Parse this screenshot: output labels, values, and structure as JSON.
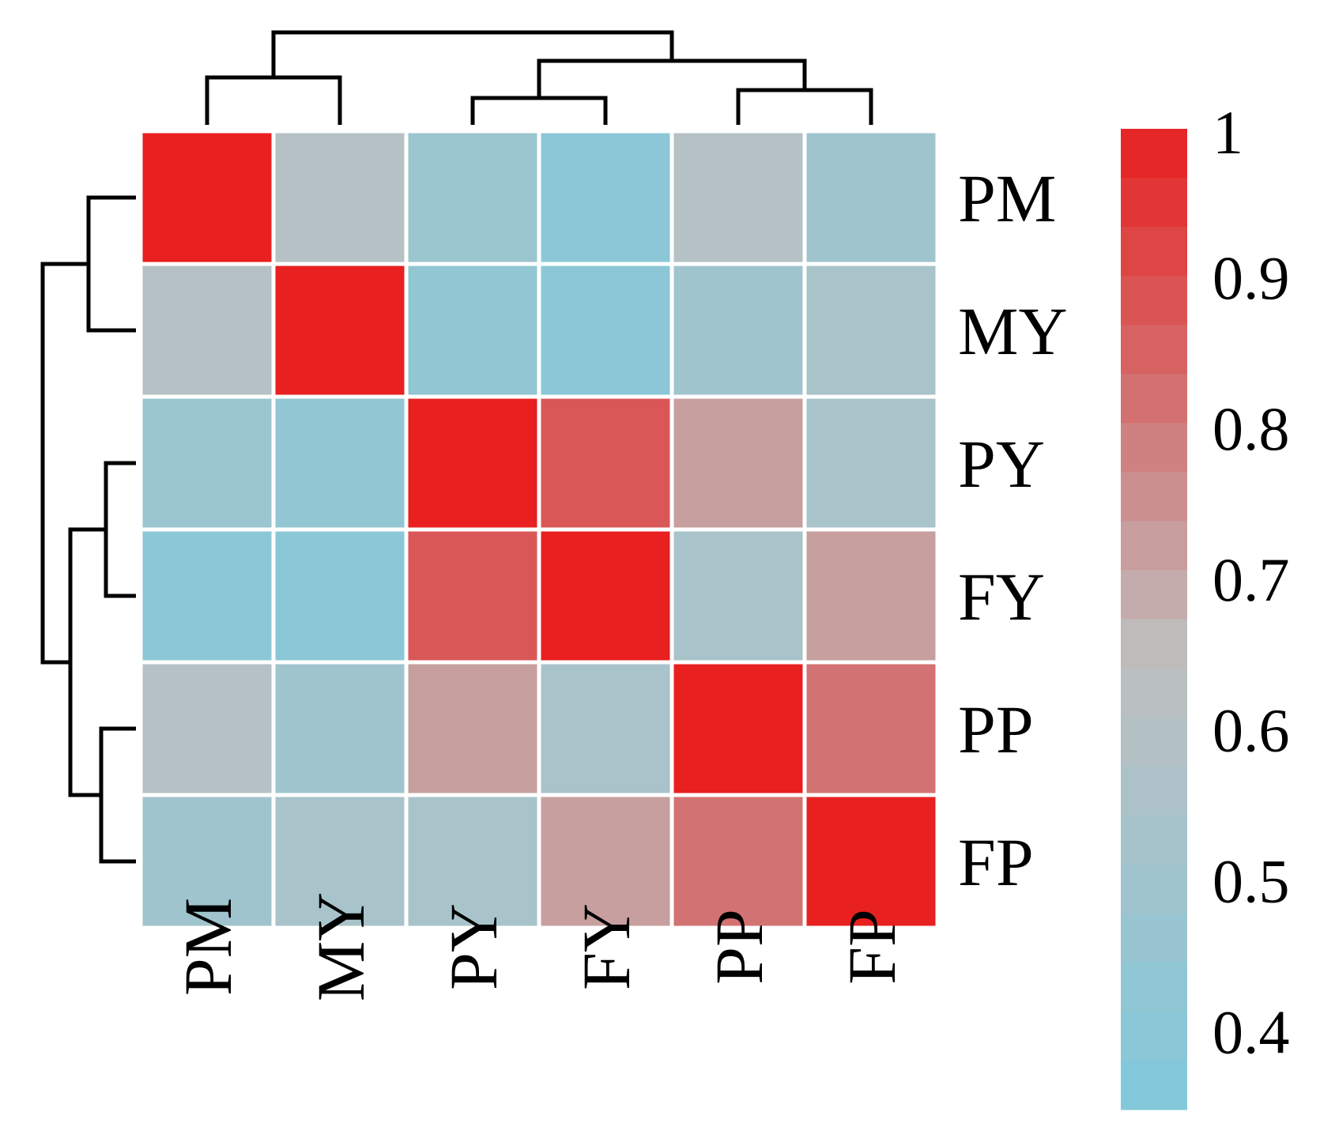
{
  "chart_data": {
    "type": "heatmap",
    "rows": [
      "PM",
      "MY",
      "PY",
      "FY",
      "PP",
      "FP"
    ],
    "columns": [
      "PM",
      "MY",
      "PY",
      "FY",
      "PP",
      "FP"
    ],
    "values": [
      [
        1.0,
        0.6,
        0.48,
        0.4,
        0.6,
        0.5
      ],
      [
        0.6,
        1.0,
        0.44,
        0.4,
        0.5,
        0.54
      ],
      [
        0.48,
        0.44,
        1.0,
        0.88,
        0.72,
        0.54
      ],
      [
        0.4,
        0.4,
        0.88,
        1.0,
        0.54,
        0.72
      ],
      [
        0.6,
        0.5,
        0.72,
        0.54,
        1.0,
        0.82
      ],
      [
        0.5,
        0.54,
        0.54,
        0.72,
        0.82,
        1.0
      ]
    ],
    "colorbar": {
      "ticks": [
        "1",
        "0.9",
        "0.8",
        "0.7",
        "0.6",
        "0.5",
        "0.4"
      ],
      "tick_values": [
        1.0,
        0.9,
        0.8,
        0.7,
        0.6,
        0.5,
        0.4
      ],
      "min": 0.35,
      "max": 1.0
    },
    "colors": {
      "low": "#80c9dc",
      "mid": "#bfbfbf",
      "high": "#e82020",
      "grid": "#ffffff",
      "dendrogram": "#000000"
    },
    "dendrogram": {
      "clusters": [
        [
          "PM",
          "MY"
        ],
        [
          "PY",
          "FY"
        ],
        [
          "PP",
          "FP"
        ],
        [
          [
            "PY",
            "FY"
          ],
          [
            "PP",
            "FP"
          ]
        ],
        [
          [
            "PM",
            "MY"
          ],
          [
            [
              "PY",
              "FY"
            ],
            [
              "PP",
              "FP"
            ]
          ]
        ]
      ],
      "top": true,
      "left": true
    },
    "title": "",
    "xlabel": "",
    "ylabel": ""
  }
}
